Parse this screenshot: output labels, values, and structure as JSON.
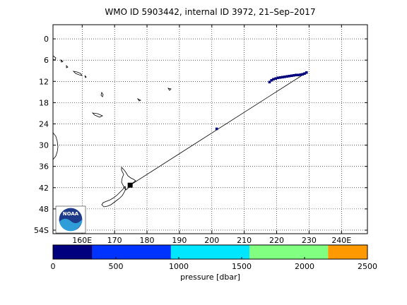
{
  "title": "WMO ID 5903442, internal ID 3972, 21–Sep–2017",
  "chart_data": {
    "type": "scatter",
    "title": "WMO ID 5903442, internal ID 3972, 21–Sep–2017",
    "xlim": [
      151,
      248
    ],
    "ylim": [
      -55,
      4
    ],
    "x_ticks": [
      {
        "value": 160,
        "label": "160E"
      },
      {
        "value": 170,
        "label": "170"
      },
      {
        "value": 180,
        "label": "180"
      },
      {
        "value": 190,
        "label": "190"
      },
      {
        "value": 200,
        "label": "200"
      },
      {
        "value": 210,
        "label": "210"
      },
      {
        "value": 220,
        "label": "220"
      },
      {
        "value": 230,
        "label": "230"
      },
      {
        "value": 240,
        "label": "240E"
      }
    ],
    "y_ticks": [
      {
        "value": 0,
        "label": "0"
      },
      {
        "value": -6,
        "label": "6"
      },
      {
        "value": -12,
        "label": "12"
      },
      {
        "value": -18,
        "label": "18"
      },
      {
        "value": -24,
        "label": "24"
      },
      {
        "value": -30,
        "label": "30"
      },
      {
        "value": -36,
        "label": "36"
      },
      {
        "value": -42,
        "label": "42"
      },
      {
        "value": -48,
        "label": "48"
      },
      {
        "value": -54,
        "label": "54S"
      }
    ],
    "grid": true,
    "track_line": [
      [
        174.8,
        -41.3
      ],
      [
        229.2,
        -9.5
      ]
    ],
    "deployment": {
      "x": 174.8,
      "y": -41.3
    },
    "profiles": [
      {
        "x": 201.5,
        "y": -25.4,
        "pressure": 0
      },
      {
        "x": 217.8,
        "y": -12.2,
        "pressure": 0
      },
      {
        "x": 218.4,
        "y": -11.7,
        "pressure": 0
      },
      {
        "x": 219.0,
        "y": -11.4,
        "pressure": 0
      },
      {
        "x": 219.7,
        "y": -11.2,
        "pressure": 0
      },
      {
        "x": 220.4,
        "y": -11.0,
        "pressure": 0
      },
      {
        "x": 221.1,
        "y": -10.9,
        "pressure": 0
      },
      {
        "x": 221.8,
        "y": -10.8,
        "pressure": 0
      },
      {
        "x": 222.5,
        "y": -10.7,
        "pressure": 0
      },
      {
        "x": 223.2,
        "y": -10.6,
        "pressure": 0
      },
      {
        "x": 223.9,
        "y": -10.5,
        "pressure": 0
      },
      {
        "x": 224.6,
        "y": -10.4,
        "pressure": 0
      },
      {
        "x": 225.3,
        "y": -10.3,
        "pressure": 0
      },
      {
        "x": 226.0,
        "y": -10.2,
        "pressure": 0
      },
      {
        "x": 226.7,
        "y": -10.2,
        "pressure": 0
      },
      {
        "x": 227.4,
        "y": -10.1,
        "pressure": 0
      },
      {
        "x": 228.0,
        "y": -10.0,
        "pressure": 0
      },
      {
        "x": 228.6,
        "y": -9.8,
        "pressure": 0
      },
      {
        "x": 229.2,
        "y": -9.5,
        "pressure": 0
      }
    ],
    "colorbar": {
      "label": "pressure [dbar]",
      "range": [
        0,
        2500
      ],
      "bins": [
        {
          "from": 0,
          "to": 312.5,
          "color": "#00007f"
        },
        {
          "from": 312.5,
          "to": 937.5,
          "color": "#0033ff"
        },
        {
          "from": 937.5,
          "to": 1562.5,
          "color": "#00e6ff"
        },
        {
          "from": 1562.5,
          "to": 2187.5,
          "color": "#80ff80"
        },
        {
          "from": 2187.5,
          "to": 2500,
          "color": "#ff9900"
        }
      ],
      "ticks": [
        {
          "value": 0,
          "label": "0"
        },
        {
          "value": 500,
          "label": "500"
        },
        {
          "value": 1000,
          "label": "1000"
        },
        {
          "value": 1500,
          "label": "1500"
        },
        {
          "value": 2000,
          "label": "2000"
        },
        {
          "value": 2500,
          "label": "2500"
        }
      ]
    },
    "logo": "NOAA"
  }
}
